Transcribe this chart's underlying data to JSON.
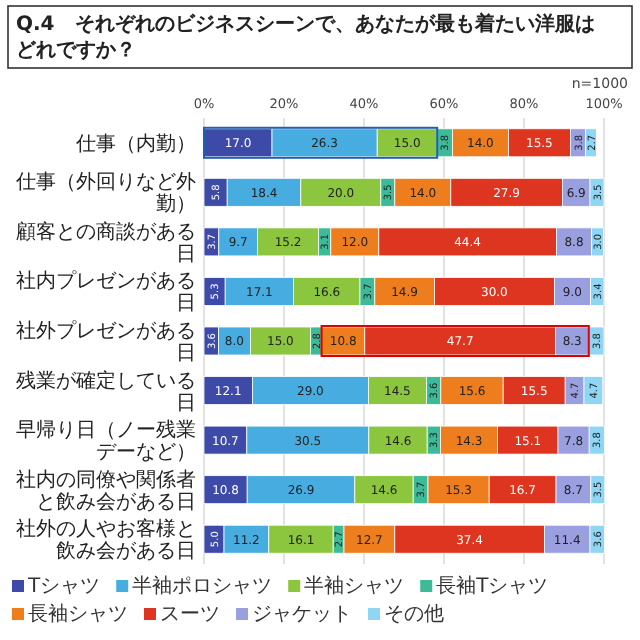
{
  "chart_data": {
    "type": "bar",
    "orientation": "horizontal",
    "stacked": true,
    "title": "Q.4　それぞれのビジネスシーンで、あなたが最も着たい洋服はどれですか？",
    "annotations": [
      "n=1000"
    ],
    "categories": [
      "仕事（内勤）",
      "仕事（外回りなど外勤）",
      "顧客との商談がある日",
      "社内プレゼンがある日",
      "社外プレゼンがある日",
      "残業が確定している日",
      "早帰り日（ノー残業デーなど）",
      "社内の同僚や関係者と飲み会がある日",
      "社外の人やお客様と飲み会がある日"
    ],
    "series": [
      {
        "name": "Tシャツ",
        "color": "#3d4aa8",
        "values": [
          17.0,
          5.8,
          3.7,
          5.3,
          3.6,
          12.1,
          10.7,
          10.8,
          5.0
        ],
        "value_labels": [
          "17.0",
          "5.8",
          "3.7",
          "5.3",
          "3.6",
          "12.1",
          "10.7",
          "10.8",
          "5.0"
        ]
      },
      {
        "name": "半袖ポロシャツ",
        "color": "#47ade0",
        "values": [
          26.3,
          18.4,
          9.7,
          17.1,
          8.0,
          29.0,
          30.5,
          26.9,
          11.2
        ],
        "value_labels": [
          "26.3",
          "18.4",
          "9.7",
          "17.1",
          "8.0",
          "29.0",
          "30.5",
          "26.9",
          "11.2"
        ]
      },
      {
        "name": "半袖シャツ",
        "color": "#8cc63f",
        "values": [
          15.0,
          20.0,
          15.2,
          16.6,
          15.0,
          14.5,
          14.6,
          14.6,
          16.1
        ],
        "value_labels": [
          "15.0",
          "20.0",
          "15.2",
          "16.6",
          "15.0",
          "14.5",
          "14.6",
          "14.6",
          "16.1"
        ]
      },
      {
        "name": "長袖Tシャツ",
        "color": "#3dbb98",
        "values": [
          3.8,
          3.5,
          3.1,
          3.7,
          2.8,
          3.6,
          3.3,
          3.7,
          2.7
        ],
        "value_labels": [
          "3.8",
          "3.5",
          "3.1",
          "3.7",
          "2.8",
          "3.6",
          "3.3",
          "3.7",
          "2.7"
        ]
      },
      {
        "name": "長袖シャツ",
        "color": "#ee7d1e",
        "values": [
          14.0,
          14.0,
          12.0,
          14.9,
          10.8,
          15.6,
          14.3,
          15.3,
          12.7
        ],
        "value_labels": [
          "14.0",
          "14.0",
          "12.0",
          "14.9",
          "10.8",
          "15.6",
          "14.3",
          "15.3",
          "12.7"
        ]
      },
      {
        "name": "スーツ",
        "color": "#de3520",
        "values": [
          15.5,
          27.9,
          44.4,
          30.0,
          47.7,
          15.5,
          15.1,
          16.7,
          37.4
        ],
        "value_labels": [
          "15.5",
          "27.9",
          "44.4",
          "30.0",
          "47.7",
          "15.5",
          "15.1",
          "16.7",
          "37.4"
        ]
      },
      {
        "name": "ジャケット",
        "color": "#9a9fe0",
        "values": [
          3.8,
          6.9,
          8.8,
          9.0,
          8.3,
          4.7,
          7.8,
          8.7,
          11.4
        ],
        "value_labels": [
          "3.8",
          "6.9",
          "8.8",
          "9.0",
          "8.3",
          "4.7",
          "7.8",
          "8.7",
          "11.4"
        ]
      },
      {
        "name": "その他",
        "color": "#8fd6f4",
        "values": [
          2.7,
          3.5,
          3.0,
          3.4,
          3.8,
          4.7,
          3.8,
          3.5,
          3.6
        ],
        "value_labels": [
          "2.7",
          "3.5",
          "3.0",
          "3.4",
          "3.8",
          "4.7",
          "3.8",
          "3.5",
          "3.6"
        ]
      }
    ],
    "xlim": [
      0,
      100
    ],
    "xticks": [
      {
        "value": 0,
        "label": "0%"
      },
      {
        "value": 20,
        "label": "20%"
      },
      {
        "value": 40,
        "label": "40%"
      },
      {
        "value": 60,
        "label": "60%"
      },
      {
        "value": 80,
        "label": "80%"
      },
      {
        "value": 100,
        "label": "100%"
      }
    ],
    "grid": "x",
    "legend": "bottom"
  }
}
